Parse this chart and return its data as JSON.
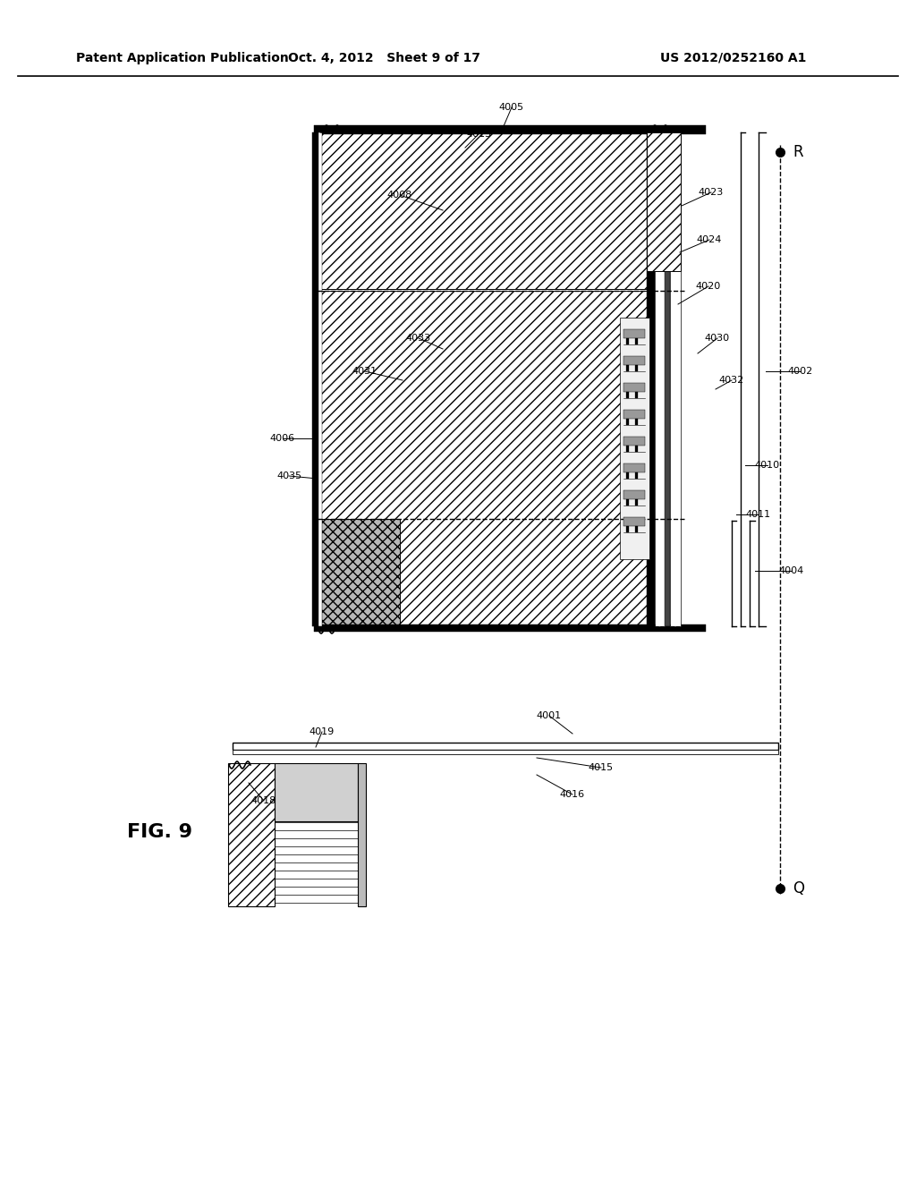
{
  "header_left": "Patent Application Publication",
  "header_mid": "Oct. 4, 2012   Sheet 9 of 17",
  "header_right": "US 2012/0252160 A1",
  "fig_label": "FIG. 9",
  "bg_color": "#ffffff"
}
